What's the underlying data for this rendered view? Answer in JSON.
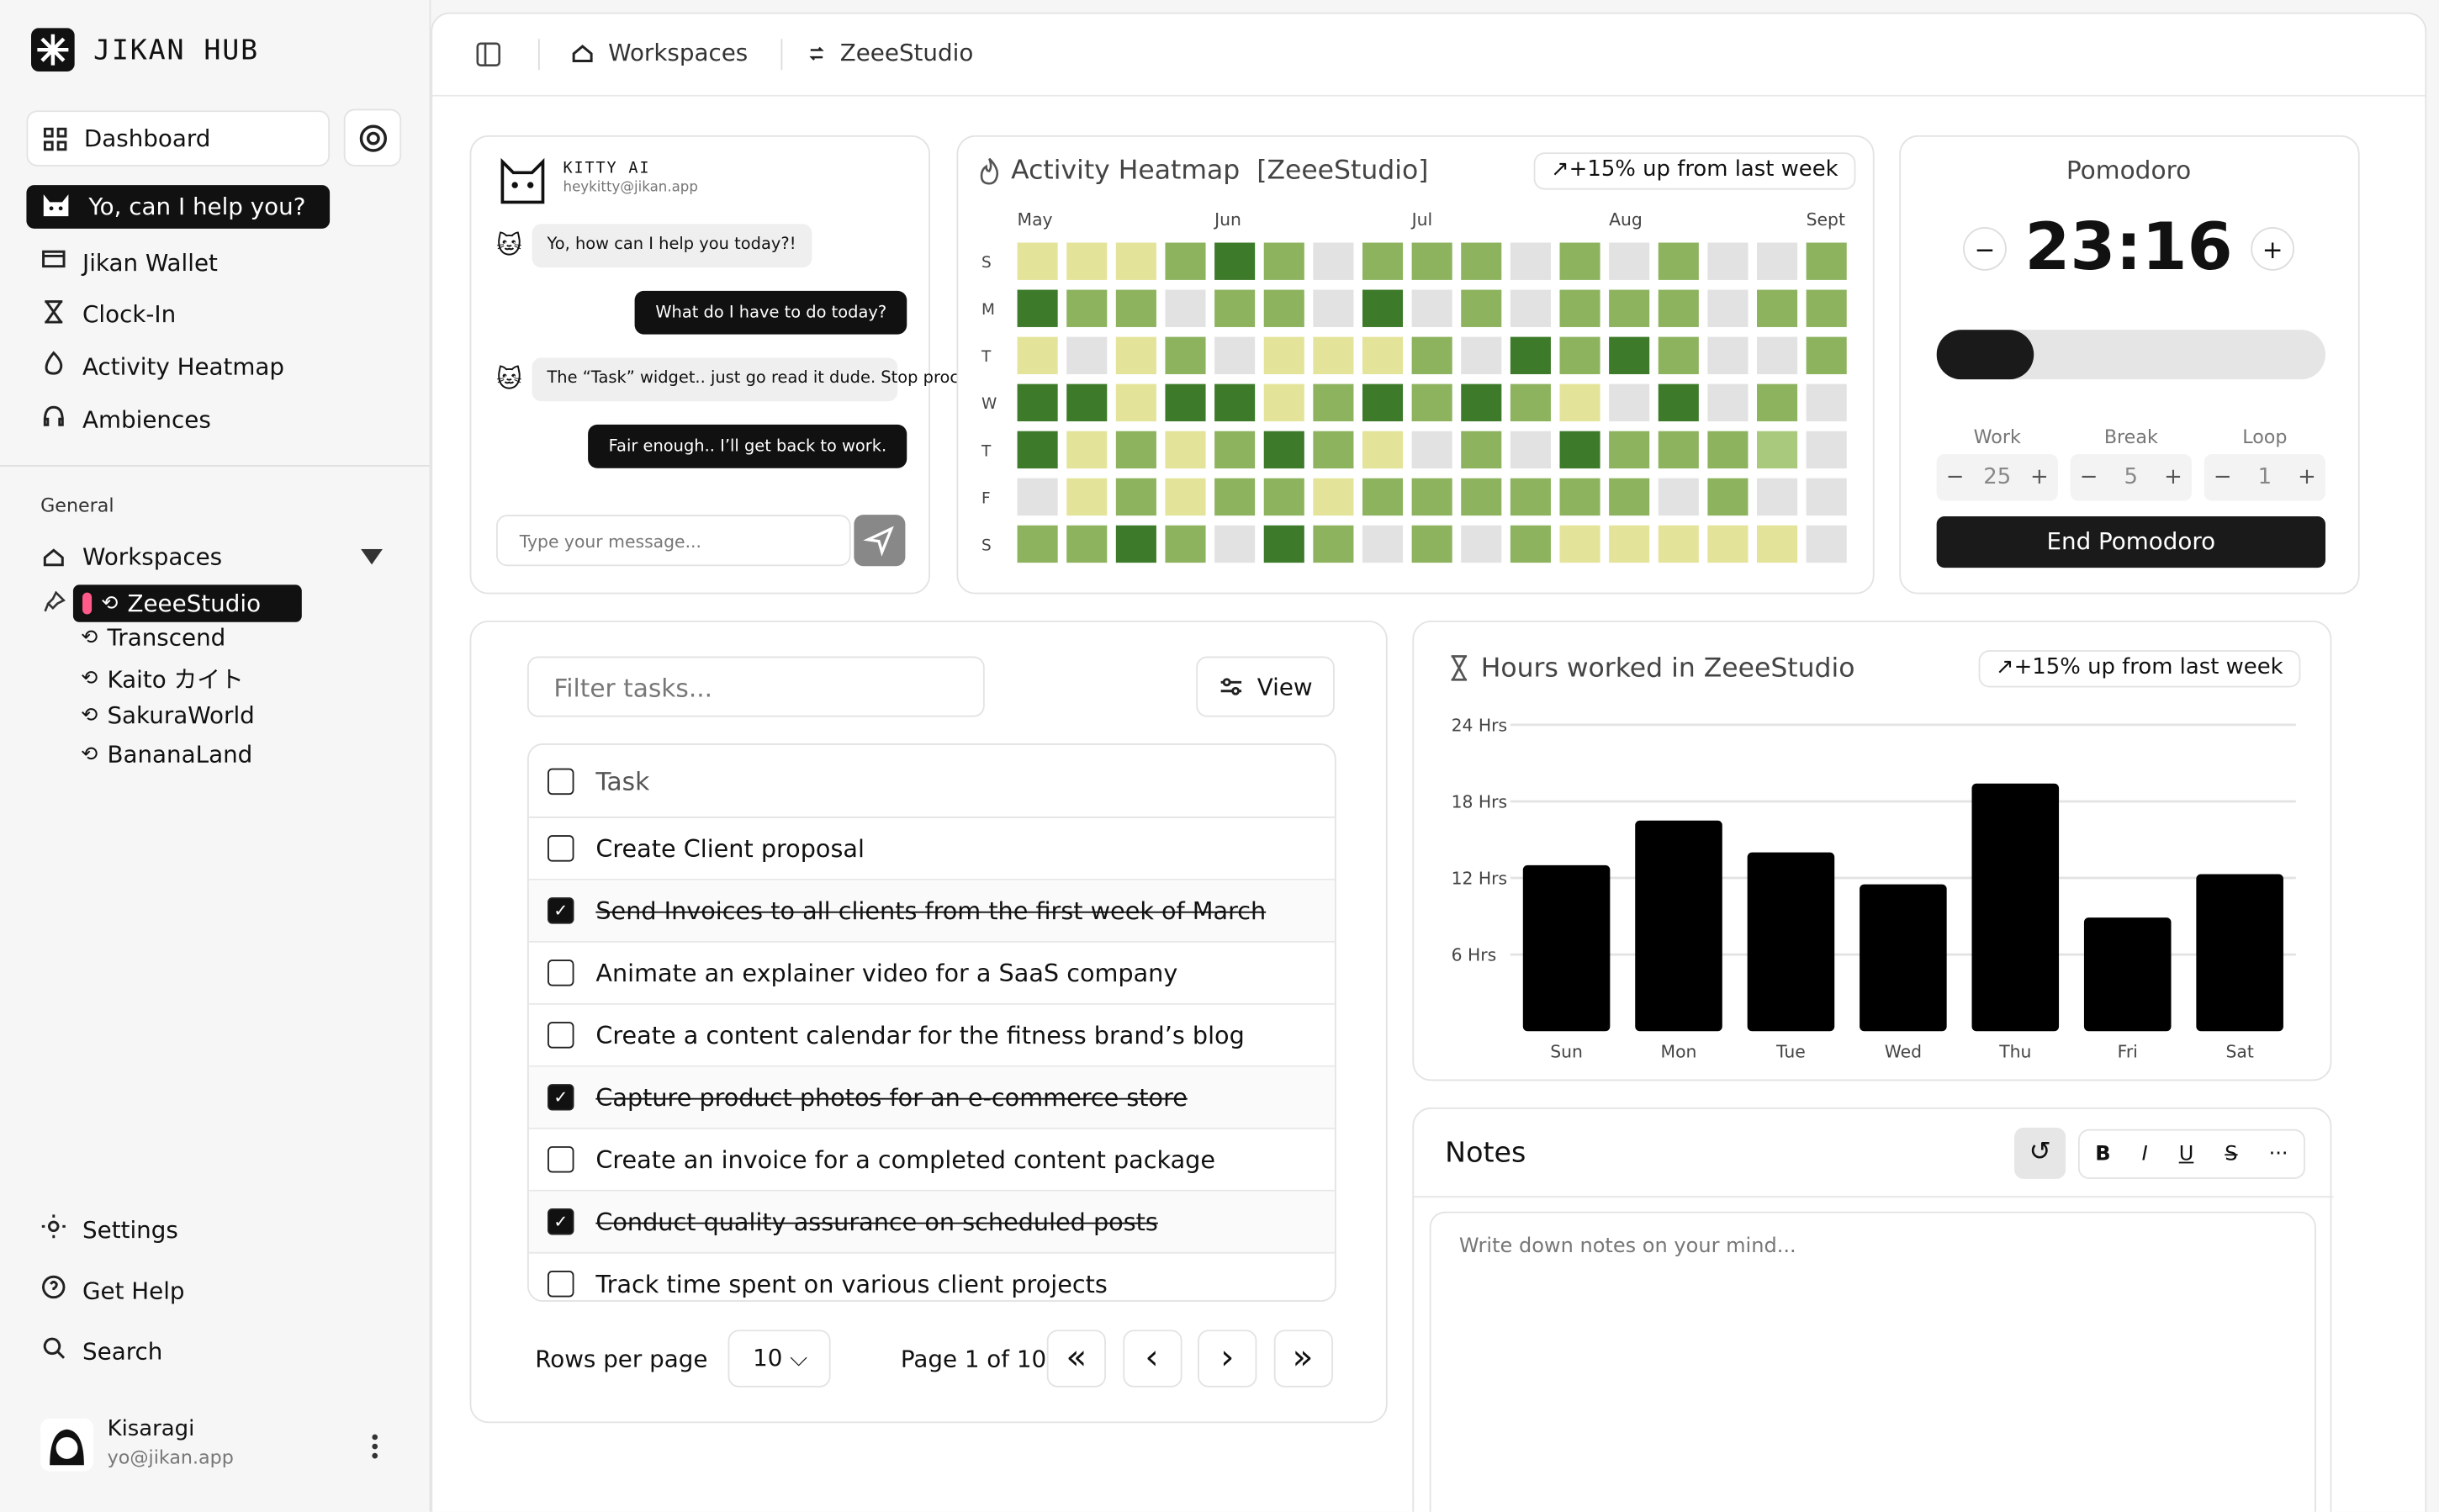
{
  "sidebar": {
    "brand": "JIKAN HUB",
    "dashboard": "Dashboard",
    "assistant": "Yo, can I help you?",
    "nav": [
      "Jikan Wallet",
      "Clock-In",
      "Activity Heatmap",
      "Ambiences"
    ],
    "section": "General",
    "workspaces": "Workspaces",
    "workspace_items": [
      "ZeeeStudio",
      "Transcend",
      "Kaito カイト",
      "SakuraWorld",
      "BananaLand"
    ],
    "bottom": [
      "Settings",
      "Get Help",
      "Search"
    ],
    "user": {
      "name": "Kisaragi",
      "email": "yo@jikan.app"
    }
  },
  "breadcrumb": [
    "Workspaces",
    "ZeeeStudio"
  ],
  "chat": {
    "name": "KITTY AI",
    "email": "heykitty@jikan.app",
    "messages": [
      {
        "from": "ai",
        "text": "Yo, how can I help you today?!"
      },
      {
        "from": "user",
        "text": "What do I have to do today?"
      },
      {
        "from": "ai",
        "text": "The “Task” widget.. just go read it dude. Stop procrastinating and get to work~"
      },
      {
        "from": "user",
        "text": "Fair enough.. I’ll get back to work."
      }
    ],
    "placeholder": "Type your message..."
  },
  "heatmap": {
    "title": "Activity Heatmap",
    "tag": "[ZeeeStudio]",
    "badge": "+15% up from last week",
    "months": [
      "May",
      null,
      null,
      null,
      "Jun",
      null,
      null,
      null,
      "Jul",
      null,
      null,
      null,
      "Aug",
      null,
      null,
      null,
      "Sept"
    ],
    "days": [
      "S",
      "M",
      "T",
      "W",
      "T",
      "F",
      "S"
    ],
    "colors": [
      "#e2e2e2",
      "#e3e49a",
      "#a9c97d",
      "#8db35f",
      "#3d7a2a"
    ],
    "levels": [
      [
        1,
        1,
        1,
        3,
        4,
        3,
        0,
        3,
        3,
        3,
        0,
        3,
        0,
        3,
        0,
        0,
        3
      ],
      [
        4,
        3,
        3,
        0,
        3,
        3,
        0,
        4,
        0,
        3,
        0,
        3,
        3,
        3,
        0,
        3,
        3
      ],
      [
        1,
        0,
        1,
        3,
        0,
        1,
        1,
        1,
        3,
        0,
        4,
        3,
        4,
        3,
        0,
        0,
        3
      ],
      [
        4,
        4,
        1,
        4,
        4,
        1,
        3,
        4,
        3,
        4,
        3,
        1,
        0,
        4,
        0,
        3,
        0
      ],
      [
        4,
        1,
        3,
        1,
        3,
        4,
        3,
        1,
        0,
        3,
        0,
        4,
        3,
        3,
        3,
        2,
        0
      ],
      [
        0,
        1,
        3,
        1,
        3,
        3,
        1,
        3,
        3,
        3,
        3,
        3,
        3,
        0,
        3,
        0,
        0
      ],
      [
        3,
        3,
        4,
        3,
        0,
        4,
        3,
        0,
        3,
        0,
        3,
        1,
        1,
        1,
        1,
        1,
        0
      ]
    ]
  },
  "pomodoro": {
    "title": "Pomodoro",
    "time": "23:16",
    "progress": 25,
    "progress_max": 100,
    "settings": [
      {
        "label": "Work",
        "value": 25
      },
      {
        "label": "Break",
        "value": 5
      },
      {
        "label": "Loop",
        "value": 1
      }
    ],
    "button": "End Pomodoro"
  },
  "tasks": {
    "filter_placeholder": "Filter tasks...",
    "view": "View",
    "header": "Task",
    "items": [
      {
        "text": "Create Client proposal",
        "done": false
      },
      {
        "text": "Send Invoices to all clients from the first week of March",
        "done": true
      },
      {
        "text": "Animate an explainer video for a SaaS company",
        "done": false
      },
      {
        "text": "Create a content calendar for the fitness brand’s blog",
        "done": false
      },
      {
        "text": "Capture product photos for an e-commerce store",
        "done": true
      },
      {
        "text": "Create an invoice for a completed content package",
        "done": false
      },
      {
        "text": "Conduct quality assurance on scheduled posts",
        "done": true
      },
      {
        "text": "Track time spent on various client projects",
        "done": false
      }
    ],
    "rows_per_page_label": "Rows per page",
    "rows_per_page": 10,
    "page": "Page 1 of 10"
  },
  "hours_chart": {
    "type": "bar",
    "title": "Hours worked in ZeeeStudio",
    "badge": "+15% up from last week",
    "categories": [
      "Sun",
      "Mon",
      "Tue",
      "Wed",
      "Thu",
      "Fri",
      "Sat"
    ],
    "values": [
      13,
      16.5,
      14,
      11.5,
      19.4,
      8.9,
      12.3
    ],
    "color": "#000000",
    "ylim": [
      0,
      24
    ],
    "yticks": [
      {
        "value": 6,
        "label": "6 Hrs"
      },
      {
        "value": 12,
        "label": "12 Hrs"
      },
      {
        "value": 18,
        "label": "18 Hrs"
      },
      {
        "value": 24,
        "label": "24 Hrs"
      }
    ],
    "grid": true
  },
  "notes": {
    "title": "Notes",
    "toolbar": [
      "B",
      "I",
      "U",
      "S",
      "···"
    ],
    "placeholder": "Write down notes on your mind..."
  }
}
